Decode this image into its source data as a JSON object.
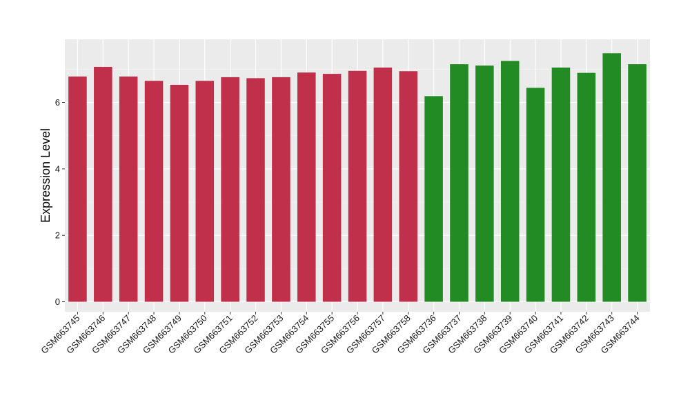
{
  "chart_data": {
    "type": "bar",
    "title": "",
    "xlabel": "",
    "ylabel": "Expression Level",
    "ylim": [
      -0.3,
      7.9
    ],
    "yticks": [
      0,
      2,
      4,
      6
    ],
    "grid": true,
    "legend": "none",
    "colors": {
      "panel_bg": "#ebebeb",
      "grid_major": "#ffffff",
      "grid_minor": "#f5f5f5",
      "group_a": "#c0304a",
      "group_b": "#238b23"
    },
    "categories": [
      "GSM663745",
      "GSM663746",
      "GSM663747",
      "GSM663748",
      "GSM663749",
      "GSM663750",
      "GSM663751",
      "GSM663752",
      "GSM663753",
      "GSM663754",
      "GSM663755",
      "GSM663756",
      "GSM663757",
      "GSM663758",
      "GSM663736",
      "GSM663737",
      "GSM663738",
      "GSM663739",
      "GSM663740",
      "GSM663741",
      "GSM663742",
      "GSM663743",
      "GSM663744"
    ],
    "values": [
      6.78,
      7.07,
      6.78,
      6.65,
      6.53,
      6.65,
      6.76,
      6.73,
      6.76,
      6.9,
      6.86,
      6.95,
      7.05,
      6.94,
      6.19,
      7.15,
      7.11,
      7.25,
      6.44,
      7.05,
      6.89,
      7.48,
      7.15
    ],
    "groups": [
      "a",
      "a",
      "a",
      "a",
      "a",
      "a",
      "a",
      "a",
      "a",
      "a",
      "a",
      "a",
      "a",
      "a",
      "b",
      "b",
      "b",
      "b",
      "b",
      "b",
      "b",
      "b",
      "b"
    ]
  }
}
